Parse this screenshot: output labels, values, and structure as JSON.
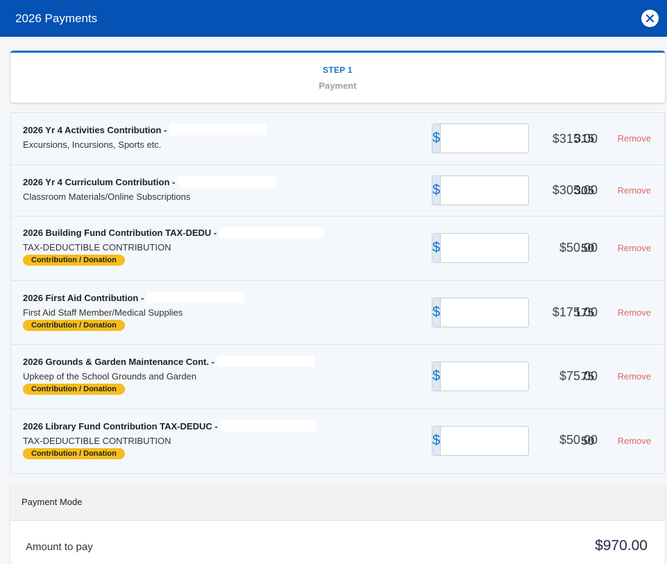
{
  "header": {
    "title": "2026 Payments"
  },
  "stepper": {
    "step_num": "STEP 1",
    "step_label": "Payment"
  },
  "items": [
    {
      "name": "2026 Yr 4 Activities Contribution -",
      "desc": "Excursions, Incursions, Sports etc.",
      "badge": "",
      "amount": "315",
      "total": "$315.00",
      "remove": "Remove"
    },
    {
      "name": "2026 Yr 4 Curriculum Contribution -",
      "desc": "Classroom Materials/Online Subscriptions",
      "badge": "",
      "amount": "305",
      "total": "$305.00",
      "remove": "Remove"
    },
    {
      "name": "2026 Building Fund Contribution TAX-DEDU -",
      "desc": "TAX-DEDUCTIBLE CONTRIBUTION",
      "badge": "Contribution / Donation",
      "amount": "50",
      "total": "$50.00",
      "remove": "Remove"
    },
    {
      "name": "2026 First Aid Contribution -",
      "desc": "First Aid Staff Member/Medical Supplies",
      "badge": "Contribution / Donation",
      "amount": "175",
      "total": "$175.00",
      "remove": "Remove"
    },
    {
      "name": "2026 Grounds & Garden Maintenance Cont. -",
      "desc": "Upkeep of the School Grounds and Garden",
      "badge": "Contribution / Donation",
      "amount": "75",
      "total": "$75.00",
      "remove": "Remove"
    },
    {
      "name": "2026 Library Fund Contribution TAX-DEDUC -",
      "desc": "TAX-DEDUCTIBLE CONTRIBUTION",
      "badge": "Contribution / Donation",
      "amount": "50",
      "total": "$50.00",
      "remove": "Remove"
    }
  ],
  "currency_symbol": "$",
  "payment_mode": {
    "title": "Payment Mode",
    "amount_label": "Amount to pay",
    "amount_value": "$970.00"
  },
  "colors": {
    "header_bg": "#0551b4",
    "badge": "#f5bd1f",
    "remove": "#e06666",
    "accent": "#1a6fcf"
  }
}
